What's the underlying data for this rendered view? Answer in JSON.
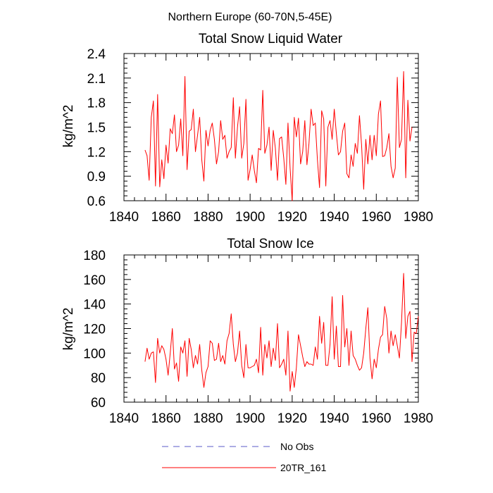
{
  "page_title": "Northern Europe (60-70N,5-45E)",
  "legend": [
    {
      "label": "No Obs",
      "color": "#5a5ac8",
      "style": "dashed"
    },
    {
      "label": "20TR_161",
      "color": "#ff0000",
      "style": "solid"
    }
  ],
  "chart_data": [
    {
      "type": "line",
      "title": "Total Snow Liquid Water",
      "xlabel": "",
      "ylabel": "kg/m^2",
      "xlim": [
        1840,
        1980
      ],
      "ylim": [
        0.6,
        2.4
      ],
      "xticks": [
        1840,
        1860,
        1880,
        1900,
        1920,
        1940,
        1960,
        1980
      ],
      "xtick_labels": [
        "1840",
        "1860",
        "1880",
        "1900",
        "1920",
        "1940",
        "1960",
        "1980"
      ],
      "yticks": [
        0.6,
        0.9,
        1.2,
        1.5,
        1.8,
        2.1,
        2.4
      ],
      "ytick_labels": [
        "0.6",
        "0.9",
        "1.2",
        "1.5",
        "1.8",
        "2.1",
        "2.4"
      ],
      "series": [
        {
          "name": "20TR_161",
          "color": "#ff0000",
          "x_start": 1850,
          "x_step": 1,
          "values": [
            1.22,
            1.15,
            0.85,
            1.62,
            1.82,
            0.78,
            1.9,
            0.77,
            1.1,
            0.87,
            1.28,
            1.06,
            1.48,
            1.42,
            1.65,
            1.2,
            1.28,
            1.6,
            1.15,
            2.12,
            0.98,
            1.45,
            1.47,
            1.72,
            1.2,
            1.4,
            1.62,
            1.1,
            0.84,
            1.46,
            1.27,
            1.46,
            1.55,
            1.35,
            1.05,
            1.2,
            1.58,
            1.35,
            1.4,
            1.12,
            1.2,
            1.25,
            1.86,
            1.12,
            1.5,
            1.75,
            1.12,
            1.3,
            1.84,
            0.85,
            0.98,
            1.16,
            0.97,
            0.82,
            1.24,
            1.22,
            1.95,
            1.18,
            1.28,
            1.5,
            0.97,
            1.46,
            1.24,
            0.85,
            1.36,
            1.38,
            1.12,
            0.8,
            1.55,
            1.0,
            0.6,
            1.62,
            1.38,
            1.61,
            1.05,
            1.2,
            1.58,
            1.04,
            1.3,
            1.72,
            1.52,
            1.55,
            1.1,
            0.76,
            1.7,
            1.6,
            0.78,
            1.5,
            1.58,
            1.35,
            1.72,
            1.42,
            1.16,
            1.2,
            1.45,
            1.55,
            0.93,
            0.88,
            1.16,
            1.02,
            1.3,
            1.18,
            1.64,
            1.28,
            0.74,
            1.35,
            1.05,
            1.4,
            1.1,
            1.4,
            1.15,
            1.66,
            1.82,
            1.14,
            1.15,
            1.25,
            1.42,
            1.02,
            0.88,
            1.0,
            2.11,
            1.25,
            1.35,
            2.18,
            0.88,
            1.83,
            1.33,
            1.5
          ]
        }
      ]
    },
    {
      "type": "line",
      "title": "Total Snow Ice",
      "xlabel": "",
      "ylabel": "kg/m^2",
      "xlim": [
        1840,
        1980
      ],
      "ylim": [
        60,
        180
      ],
      "xticks": [
        1840,
        1860,
        1880,
        1900,
        1920,
        1940,
        1960,
        1980
      ],
      "xtick_labels": [
        "1840",
        "1860",
        "1880",
        "1900",
        "1920",
        "1940",
        "1960",
        "1980"
      ],
      "yticks": [
        60,
        80,
        100,
        120,
        140,
        160,
        180
      ],
      "ytick_labels": [
        "60",
        "80",
        "100",
        "120",
        "140",
        "160",
        "180"
      ],
      "series": [
        {
          "name": "20TR_161",
          "color": "#ff0000",
          "x_start": 1850,
          "x_step": 1,
          "values": [
            93,
            104,
            95,
            100,
            101,
            76,
            112,
            100,
            106,
            103,
            95,
            82,
            100,
            120,
            87,
            92,
            77,
            105,
            100,
            110,
            81,
            112,
            103,
            88,
            98,
            91,
            107,
            86,
            72,
            84,
            89,
            110,
            108,
            94,
            95,
            108,
            93,
            98,
            91,
            110,
            116,
            132,
            107,
            93,
            100,
            118,
            90,
            80,
            107,
            88,
            88,
            89,
            90,
            95,
            84,
            121,
            82,
            107,
            96,
            110,
            89,
            104,
            94,
            124,
            88,
            91,
            95,
            82,
            118,
            69,
            85,
            72,
            88,
            115,
            106,
            97,
            89,
            93,
            91,
            91,
            90,
            105,
            95,
            130,
            108,
            125,
            90,
            90,
            107,
            146,
            95,
            122,
            89,
            89,
            147,
            105,
            120,
            90,
            118,
            98,
            95,
            90,
            86,
            88,
            100,
            120,
            137,
            96,
            79,
            95,
            88,
            103,
            113,
            115,
            138,
            128,
            100,
            118,
            106,
            115,
            106,
            96,
            125,
            165,
            112,
            130,
            134,
            93,
            117,
            116,
            130
          ]
        }
      ]
    }
  ]
}
